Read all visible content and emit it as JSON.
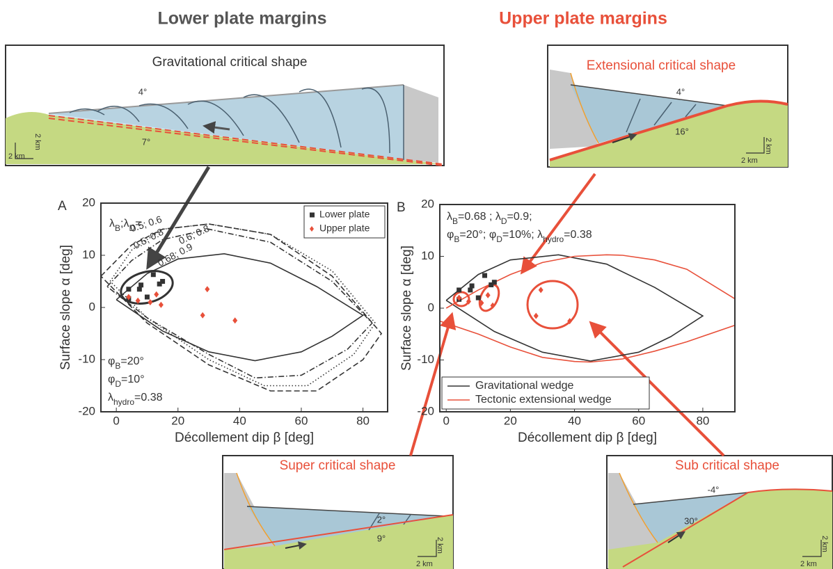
{
  "headers": {
    "left": "Lower plate margins",
    "right": "Upper plate margins"
  },
  "insets": [
    {
      "title": "Gravitational critical shape",
      "angles": [
        "4°",
        "7°"
      ],
      "scale": "2 km"
    },
    {
      "title": "Extensional critical shape",
      "angles": [
        "4°",
        "16°"
      ],
      "scale": "2 km"
    },
    {
      "title": "Super critical shape",
      "angles": [
        "2°",
        "9°"
      ],
      "scale": "2 km"
    },
    {
      "title": "Sub critical shape",
      "angles": [
        "-4°",
        "30°"
      ],
      "scale": "2 km"
    }
  ],
  "chart_data": [
    {
      "type": "scatter",
      "label": "A",
      "xlabel": "Décollement dip β [deg]",
      "ylabel": "Surface slope α [deg]",
      "xlim": [
        -5,
        88
      ],
      "xticks": [
        0,
        20,
        40,
        60,
        80
      ],
      "ylim": [
        -20,
        20
      ],
      "yticks": [
        -20,
        -10,
        0,
        10,
        20
      ],
      "legend": "upper right",
      "curve_title": [
        "λ",
        "B",
        ";λ",
        "D",
        "="
      ],
      "params": [
        [
          "φ",
          "B",
          "=20°"
        ],
        [
          "φ",
          "D",
          "=10°"
        ],
        [
          "λ",
          "hydro",
          "=0.38"
        ]
      ],
      "series": [
        {
          "name": "0.5; 0.6",
          "type": "line",
          "style": "dashed",
          "color": "#333",
          "in_legend": false,
          "x": [
            -5,
            5,
            15,
            30,
            50,
            70,
            86,
            80,
            65,
            50,
            30,
            10,
            -5
          ],
          "values": [
            6,
            12,
            15,
            16,
            14,
            6,
            -5,
            -10,
            -16,
            -16,
            -11,
            -3,
            6
          ]
        },
        {
          "name": "0.5; 0.8",
          "type": "line",
          "style": "dotted",
          "color": "#333",
          "in_legend": false,
          "x": [
            -2,
            5,
            15,
            30,
            50,
            70,
            84,
            77,
            62,
            48,
            30,
            10,
            -2
          ],
          "values": [
            5,
            11,
            15,
            16,
            14,
            7,
            -3,
            -9,
            -15,
            -15,
            -10,
            -2,
            5
          ]
        },
        {
          "name": "0.6; 0.8",
          "type": "line",
          "style": "dashdot",
          "color": "#333",
          "in_legend": false,
          "x": [
            -3,
            5,
            15,
            30,
            50,
            70,
            83,
            75,
            60,
            45,
            30,
            10,
            -3
          ],
          "values": [
            4,
            9,
            13,
            15,
            12.5,
            5,
            -3,
            -8,
            -13,
            -13.5,
            -9,
            -2,
            4
          ]
        },
        {
          "name": "0.68; 0.9",
          "type": "line",
          "style": "solid",
          "color": "#333",
          "in_legend": false,
          "x": [
            0,
            10,
            20,
            35,
            50,
            65,
            80,
            70,
            60,
            45,
            30,
            15,
            0
          ],
          "values": [
            1.5,
            6.5,
            9.3,
            10.3,
            8.5,
            4,
            -1.5,
            -5.5,
            -8.5,
            -10.2,
            -8.5,
            -4.5,
            1.5
          ]
        },
        {
          "name": "Lower plate",
          "type": "scatter",
          "marker": "square",
          "color": "#333",
          "in_legend": true,
          "x": [
            4,
            7.5,
            8,
            12,
            14,
            15,
            4,
            10
          ],
          "values": [
            3.5,
            3.5,
            4.3,
            6.3,
            4.5,
            5,
            1.7,
            2
          ]
        },
        {
          "name": "Upper plate",
          "type": "scatter",
          "marker": "diamond",
          "color": "#e8503a",
          "in_legend": true,
          "x": [
            4,
            7,
            11,
            13,
            14.5,
            29.5,
            28,
            38.5
          ],
          "values": [
            2,
            1.3,
            1,
            2.5,
            0.5,
            3.5,
            -1.5,
            -2.5
          ]
        }
      ]
    },
    {
      "type": "scatter",
      "label": "B",
      "xlabel": "Décollement dip β [deg]",
      "ylabel": "Surface slope α [deg]",
      "xlim": [
        -2,
        90
      ],
      "xticks": [
        0,
        20,
        40,
        60,
        80
      ],
      "ylim": [
        -20,
        20
      ],
      "yticks": [
        -20,
        -10,
        0,
        10,
        20
      ],
      "legend": "lower left",
      "params": [
        [
          "λ",
          "B",
          "=0.68 ; λ",
          "D",
          "=0.9;"
        ],
        [
          "φ",
          "B",
          "=20°; φ",
          "D",
          "=10%; λ",
          "hydro",
          "=0.38"
        ]
      ],
      "series": [
        {
          "name": "Gravitational wedge",
          "type": "line",
          "style": "solid",
          "color": "#333",
          "in_legend": true,
          "x": [
            0,
            10,
            20,
            35,
            50,
            65,
            80,
            70,
            60,
            45,
            30,
            15,
            0
          ],
          "values": [
            1.5,
            6.5,
            9.3,
            10.3,
            8.5,
            4,
            -1.5,
            -5.5,
            -8.5,
            -10.2,
            -8.5,
            -4.5,
            1.5
          ]
        },
        {
          "name": "Tectonic extensional wedge",
          "type": "line",
          "style": "solid",
          "color": "#e8503a",
          "in_legend": true,
          "x": [
            0,
            10,
            20,
            30,
            40,
            50,
            55,
            65,
            75,
            90,
            null,
            -2,
            10,
            20,
            30,
            40,
            45,
            55,
            65,
            75,
            90
          ],
          "values": [
            0,
            3.5,
            6.5,
            8.8,
            10,
            10.3,
            10.2,
            9.3,
            7.5,
            1.8,
            null,
            -2.5,
            -5,
            -7.5,
            -9.5,
            -10.3,
            -10.4,
            -9.8,
            -8.3,
            -6.5,
            -3.3
          ]
        },
        {
          "type": "scatter",
          "marker": "square",
          "color": "#333",
          "in_legend": false,
          "x": [
            4,
            7.5,
            8,
            12,
            14,
            15,
            4,
            10
          ],
          "values": [
            3.5,
            3.5,
            4.3,
            6.3,
            4.5,
            5,
            1.7,
            2
          ]
        },
        {
          "type": "scatter",
          "marker": "diamond",
          "color": "#e8503a",
          "in_legend": false,
          "x": [
            4,
            7,
            11,
            13,
            14.5,
            29.5,
            28,
            38.5
          ],
          "values": [
            2,
            1.3,
            1,
            2.5,
            0.5,
            3.5,
            -1.5,
            -2.5
          ]
        }
      ]
    }
  ]
}
